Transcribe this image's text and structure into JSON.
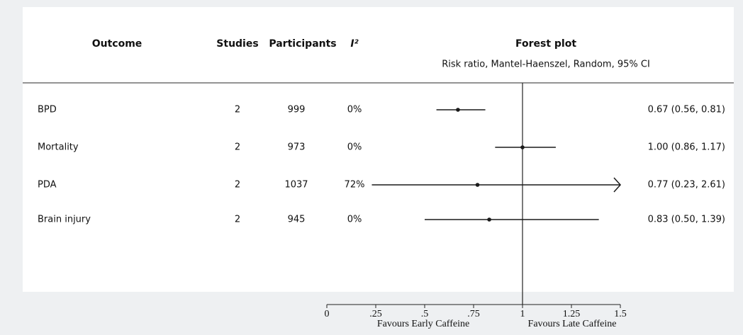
{
  "chart_data": {
    "type": "forest",
    "columns": {
      "outcome": "Outcome",
      "studies": "Studies",
      "participants": "Participants",
      "i2": "I²"
    },
    "title": "Forest plot",
    "subtitle": "Risk ratio, Mantel-Haenszel, Random, 95% CI",
    "categories": [
      "BPD",
      "Mortality",
      "PDA",
      "Brain injury"
    ],
    "studies": [
      2,
      2,
      2,
      2
    ],
    "participants": [
      999,
      973,
      1037,
      945
    ],
    "i2": [
      "0%",
      "0%",
      "72%",
      "0%"
    ],
    "values": [
      0.67,
      1.0,
      0.77,
      0.83
    ],
    "lower": [
      0.56,
      0.86,
      0.23,
      0.5
    ],
    "upper": [
      0.81,
      1.17,
      2.61,
      1.39
    ],
    "value_labels": [
      "0.67 (0.56, 0.81)",
      "1.00 (0.86, 1.17)",
      "0.77 (0.23, 2.61)",
      "0.83 (0.50, 1.39)"
    ],
    "reference_line": 1,
    "xlim": [
      0,
      1.5
    ],
    "xticks": [
      0,
      {
        "value": 0.25,
        "label": ".25"
      },
      {
        "value": 0.5,
        "label": ".5"
      },
      {
        "value": 0.75,
        "label": ".75"
      },
      1,
      1.25,
      1.5
    ],
    "xlabel_left": "Favours Early Caffeine",
    "xlabel_right": "Favours Late Caffeine",
    "color": "#1a1a1a"
  }
}
